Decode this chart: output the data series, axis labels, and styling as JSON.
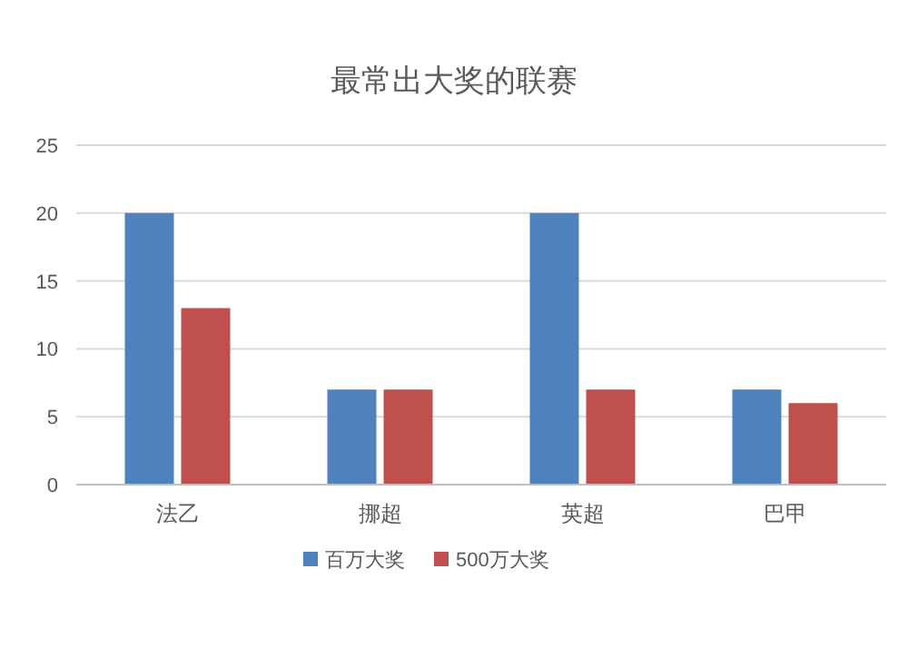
{
  "chart_data": {
    "type": "bar",
    "title": "最常出大奖的联赛",
    "categories": [
      "法乙",
      "挪超",
      "英超",
      "巴甲"
    ],
    "series": [
      {
        "name": "百万大奖",
        "color": "#4f81bd",
        "values": [
          20,
          7,
          20,
          7
        ]
      },
      {
        "name": "500万大奖",
        "color": "#c0504d",
        "values": [
          13,
          7,
          7,
          6
        ]
      }
    ],
    "ylim": [
      0,
      25
    ],
    "yticks": [
      0,
      5,
      10,
      15,
      20,
      25
    ],
    "grid": "y",
    "legend": "bottom"
  }
}
